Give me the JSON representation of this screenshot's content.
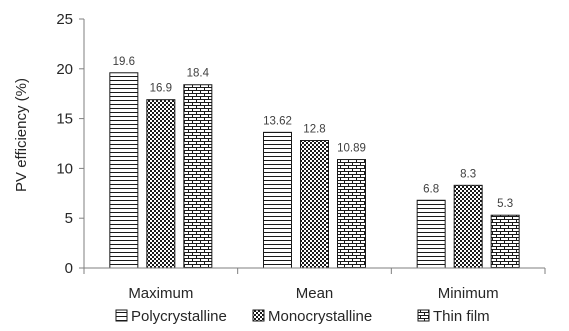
{
  "chart_data": {
    "type": "bar",
    "categories": [
      "Maximum",
      "Mean",
      "Minimum"
    ],
    "series": [
      {
        "name": "Polycrystalline",
        "values": [
          19.6,
          13.62,
          6.8
        ],
        "pattern": "horizontal-lines"
      },
      {
        "name": "Monocrystalline",
        "values": [
          16.9,
          12.8,
          8.3
        ],
        "pattern": "checker"
      },
      {
        "name": "Thin film",
        "values": [
          18.4,
          10.89,
          5.3
        ],
        "pattern": "brick"
      }
    ],
    "data_labels": [
      [
        "19.6",
        "13.62",
        "6.8"
      ],
      [
        "16.9",
        "12.8",
        "8.3"
      ],
      [
        "18.4",
        "10.89",
        "5.3"
      ]
    ],
    "title": "",
    "xlabel": "",
    "ylabel": "PV efficiency (%)",
    "ylim": [
      0,
      25
    ],
    "yticks": [
      0,
      5,
      10,
      15,
      20,
      25
    ],
    "grid": false,
    "legend_position": "bottom"
  }
}
